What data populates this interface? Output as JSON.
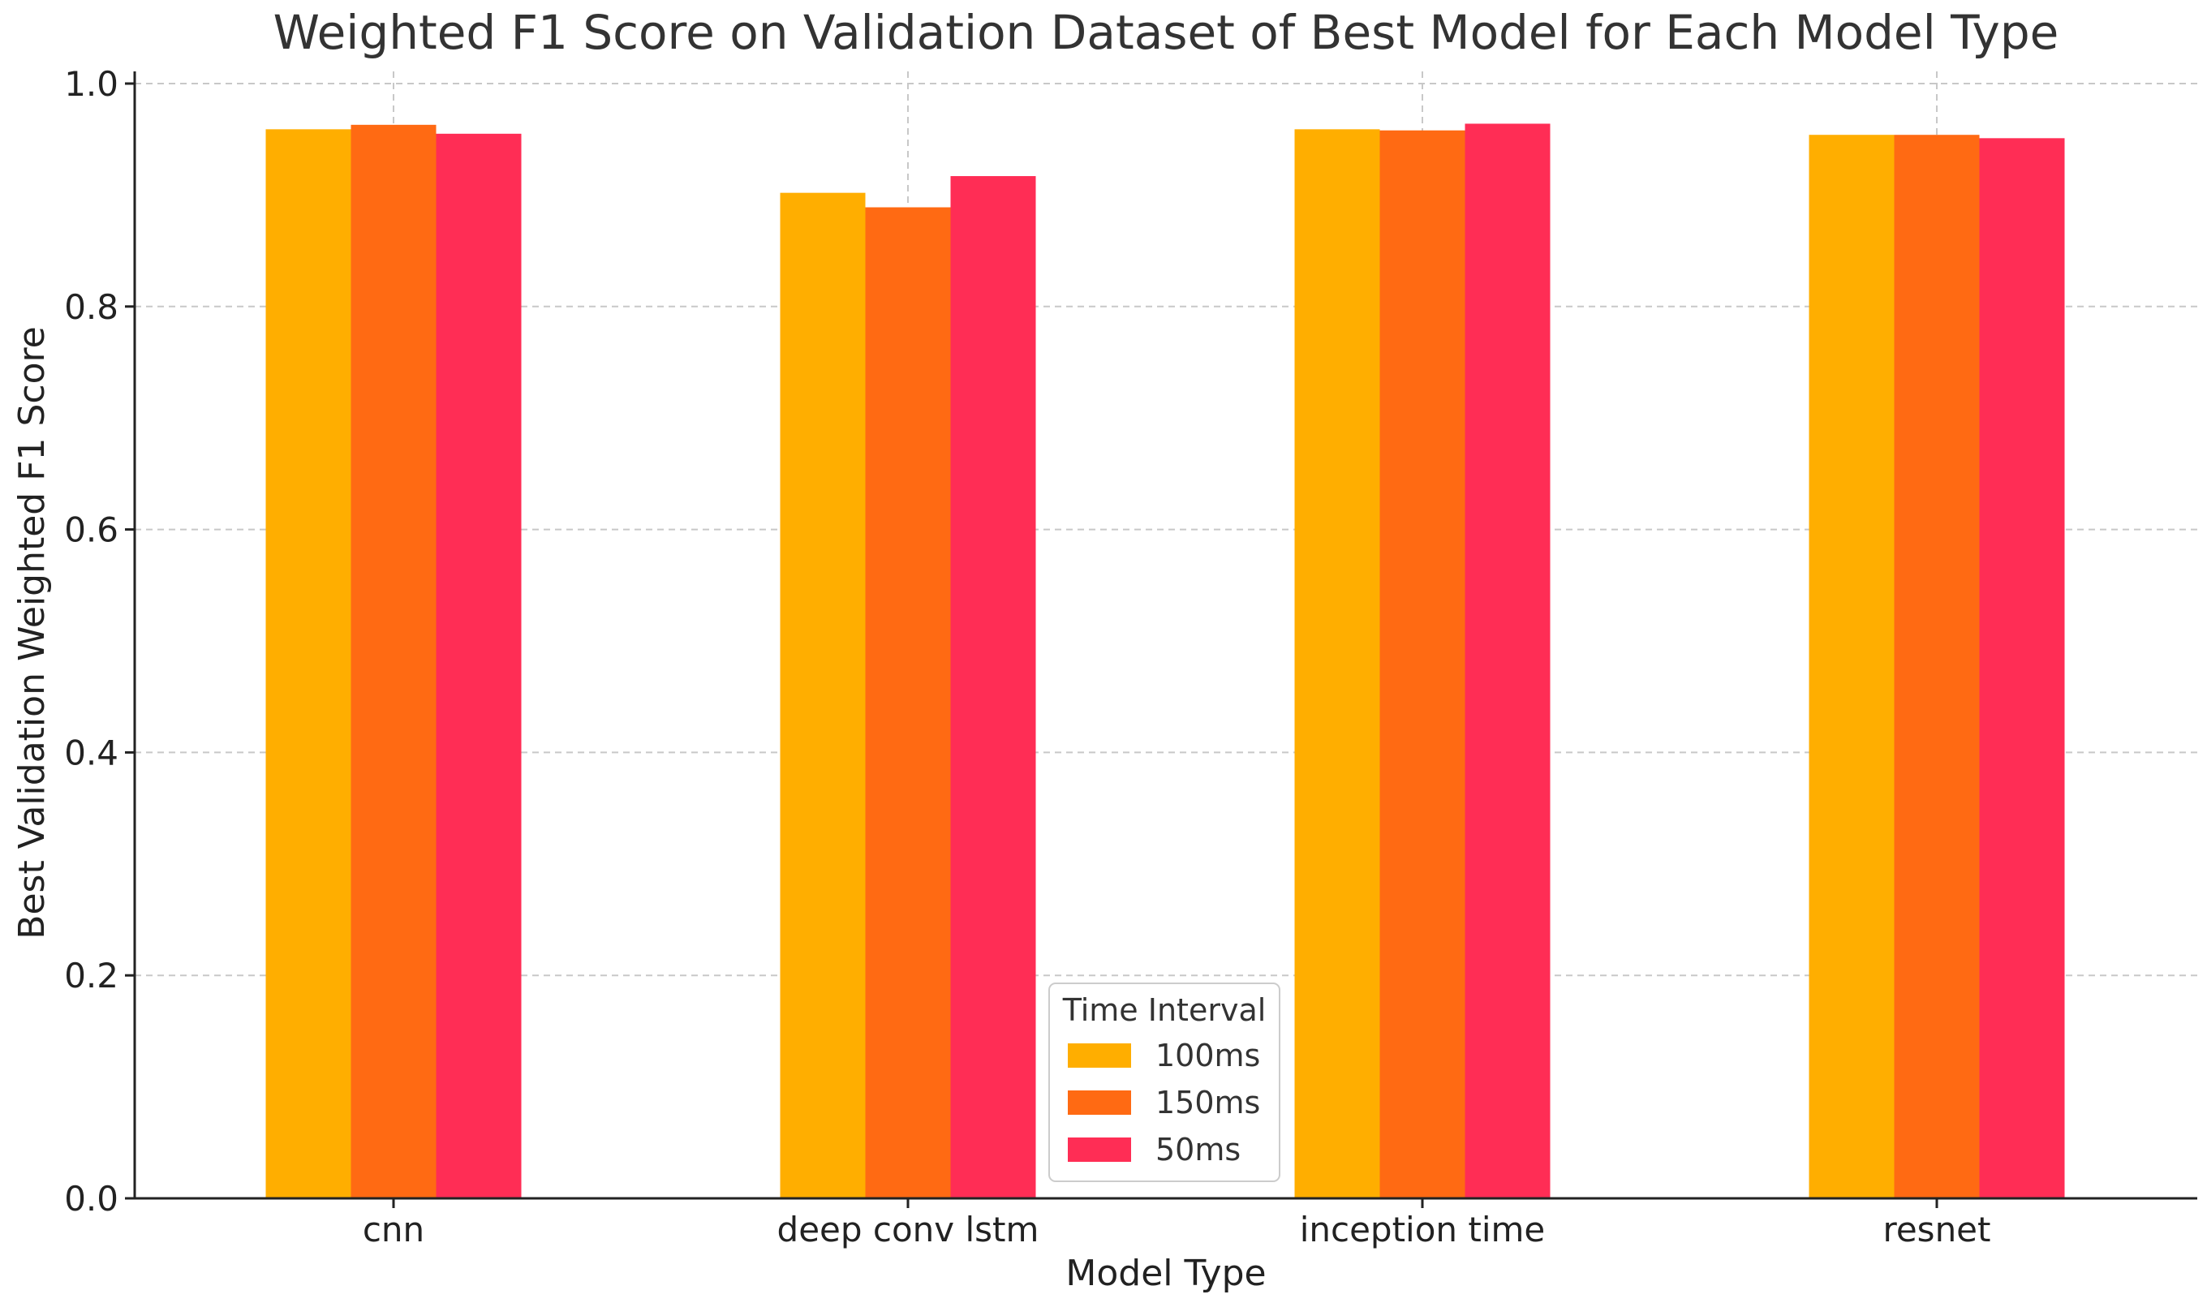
{
  "chart_data": {
    "type": "bar",
    "title": "Weighted F1 Score on Validation Dataset of Best Model for Each Model Type",
    "xlabel": "Model Type",
    "ylabel": "Best Validation Weighted F1 Score",
    "categories": [
      "cnn",
      "deep conv lstm",
      "inception time",
      "resnet"
    ],
    "series": [
      {
        "name": "100ms",
        "color": "#FFAE00",
        "values": [
          0.959,
          0.902,
          0.959,
          0.954
        ]
      },
      {
        "name": "150ms",
        "color": "#FF6A13",
        "values": [
          0.963,
          0.889,
          0.958,
          0.954
        ]
      },
      {
        "name": "50ms",
        "color": "#FF2D55",
        "values": [
          0.955,
          0.917,
          0.964,
          0.951
        ]
      }
    ],
    "ylim": [
      0,
      1.0
    ],
    "yticks": [
      0.0,
      0.2,
      0.4,
      0.6,
      0.8,
      1.0
    ],
    "ytick_labels": [
      "0.0",
      "0.2",
      "0.4",
      "0.6",
      "0.8",
      "1.0"
    ],
    "grid": true,
    "legend": {
      "title": "Time Interval",
      "position": "lower-center"
    }
  }
}
